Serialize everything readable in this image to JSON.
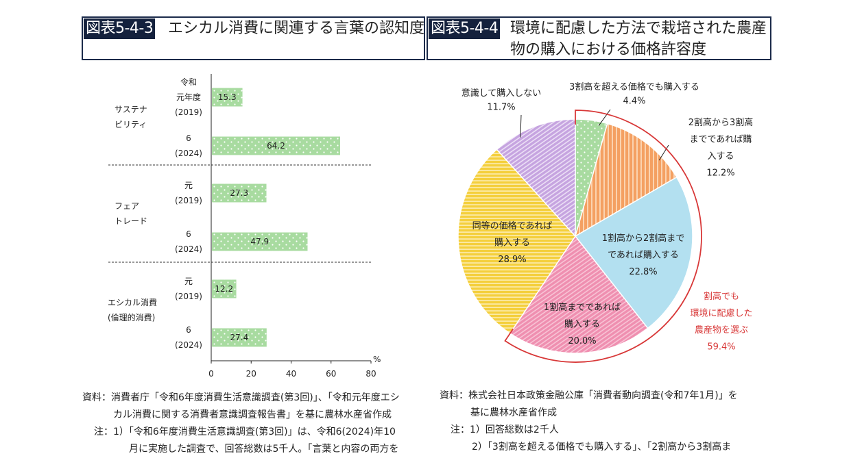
{
  "fig1": {
    "tag": "図表5-4-3",
    "title": "エシカル消費に関連する言葉の認知度"
  },
  "fig2": {
    "tag": "図表5-4-4",
    "title": "環境に配慮した方法で栽培された農産物の購入における価格許容度"
  },
  "chart_data": [
    {
      "type": "bar",
      "orientation": "horizontal",
      "unit": "%",
      "xlim": [
        0,
        80
      ],
      "xticks": [
        0,
        20,
        40,
        60,
        80
      ],
      "groups": [
        {
          "label_lines": [
            "サステナ",
            "ビリティ"
          ],
          "bars": [
            {
              "label_lines": [
                "令和",
                "元年度",
                "(2019)"
              ],
              "value": 15.3
            },
            {
              "label_lines": [
                "6",
                "(2024)"
              ],
              "value": 64.2
            }
          ]
        },
        {
          "label_lines": [
            "フェア",
            "トレード"
          ],
          "bars": [
            {
              "label_lines": [
                "元",
                "(2019)"
              ],
              "value": 27.3
            },
            {
              "label_lines": [
                "6",
                "(2024)"
              ],
              "value": 47.9
            }
          ]
        },
        {
          "label_lines": [
            "エシカル消費",
            "(倫理的消費)"
          ],
          "bars": [
            {
              "label_lines": [
                "元",
                "(2019)"
              ],
              "value": 12.2
            },
            {
              "label_lines": [
                "6",
                "(2024)"
              ],
              "value": 27.4
            }
          ]
        }
      ],
      "colors": {
        "bar": "#a8dba0",
        "dot": "#ffffff"
      }
    },
    {
      "type": "pie",
      "slices": [
        {
          "label_lines": [
            "3割高を超える価格でも購入する"
          ],
          "value": 4.4,
          "pct": "4.4%",
          "color": "#a8dba0",
          "pattern": "dots"
        },
        {
          "label_lines": [
            "2割高から3割高",
            "までであれば購",
            "入する"
          ],
          "value": 12.2,
          "pct": "12.2%",
          "color": "#f4a062",
          "pattern": "vstripes"
        },
        {
          "label_lines": [
            "1割高から2割高まで",
            "であれば購入する"
          ],
          "value": 22.8,
          "pct": "22.8%",
          "color": "#b3e0f0",
          "pattern": "solid"
        },
        {
          "label_lines": [
            "1割高までであれば",
            "購入する"
          ],
          "value": 20.0,
          "pct": "20.0%",
          "color": "#f090b0",
          "pattern": "diag"
        },
        {
          "label_lines": [
            "同等の価格であれば",
            "購入する"
          ],
          "value": 28.9,
          "pct": "28.9%",
          "color": "#f5d040",
          "pattern": "hstripes"
        },
        {
          "label_lines": [
            "意識して購入しない"
          ],
          "value": 11.7,
          "pct": "11.7%",
          "color": "#c8a8e0",
          "pattern": "diag"
        }
      ],
      "bracket": {
        "label_lines": [
          "割高でも",
          "環境に配慮した",
          "農産物を選ぶ"
        ],
        "value": "59.4%",
        "color": "#d83838"
      }
    }
  ],
  "sources": {
    "left": [
      "資料：消費者庁「令和6年度消費生活意識調査(第3回)」、「令和元年度エシ",
      "カル消費に関する消費者意識調査報告書」を基に農林水産省作成",
      "注：1）「令和6年度消費生活意識調査(第3回)」は、令和6(2024)年10",
      "月に実施した調査で、回答総数は5千人。「言葉と内容の両方を"
    ],
    "right": [
      "資料：株式会社日本政策金融公庫「消費者動向調査(令和7年1月)」を",
      "基に農林水産省作成",
      "注：1）回答総数は2千人",
      "2）「3割高を超える価格でも購入する」、「2割高から3割高ま"
    ]
  }
}
